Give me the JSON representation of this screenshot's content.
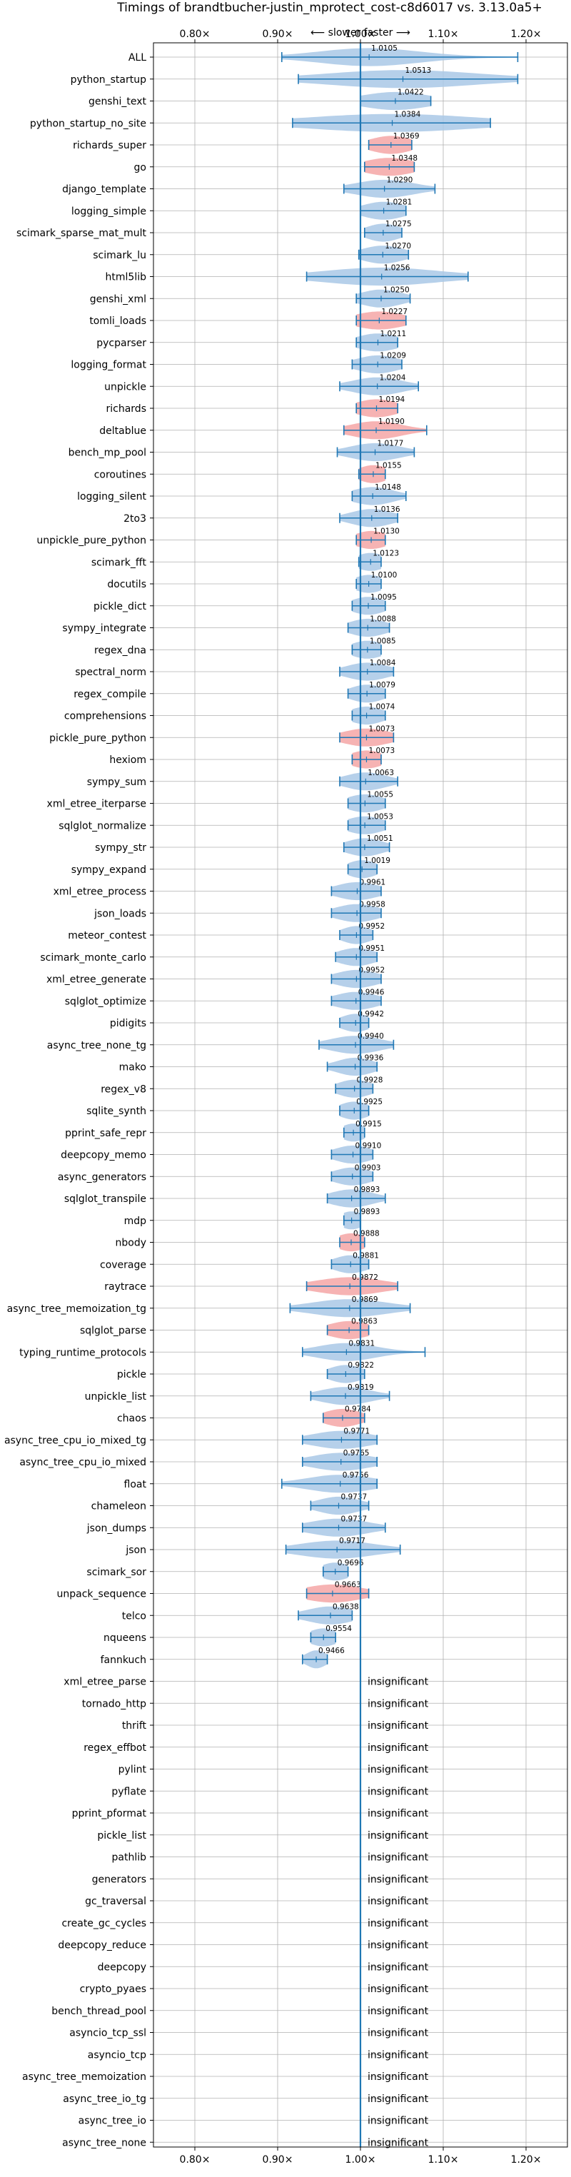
{
  "chart_data": {
    "type": "violin",
    "title": "Timings of brandtbucher-justin_mprotect_cost-c8d6017 vs. 3.13.0a5+",
    "subtitle": "⟵ slower   faster ⟶",
    "xlim": [
      0.75,
      1.25
    ],
    "x_ticks": [
      0.8,
      0.9,
      1.0,
      1.1,
      1.2
    ],
    "x_tick_labels": [
      "0.80×",
      "0.90×",
      "1.00×",
      "1.10×",
      "1.20×"
    ],
    "reference_line": 1.0,
    "grid": true,
    "colors": {
      "faster": "#a9c8e6",
      "slower": "#f4a6a6",
      "line": "#1f77b4"
    },
    "insignificant_label": "insignificant",
    "benchmarks": [
      {
        "name": "ALL",
        "value": 1.0105,
        "label": "1.0105",
        "min": 0.905,
        "max": 1.19,
        "spread": 0.06,
        "color": "faster"
      },
      {
        "name": "python_startup",
        "value": 1.0513,
        "label": "1.0513",
        "min": 0.925,
        "max": 1.19,
        "spread": 0.09,
        "color": "faster"
      },
      {
        "name": "genshi_text",
        "value": 1.0422,
        "label": "1.0422",
        "min": 1.0,
        "max": 1.085,
        "spread": 0.04,
        "color": "faster"
      },
      {
        "name": "python_startup_no_site",
        "value": 1.0384,
        "label": "1.0384",
        "min": 0.918,
        "max": 1.157,
        "spread": 0.1,
        "color": "faster"
      },
      {
        "name": "richards_super",
        "value": 1.0369,
        "label": "1.0369",
        "min": 1.01,
        "max": 1.062,
        "spread": 0.025,
        "color": "slower"
      },
      {
        "name": "go",
        "value": 1.0348,
        "label": "1.0348",
        "min": 1.005,
        "max": 1.065,
        "spread": 0.03,
        "color": "slower"
      },
      {
        "name": "django_template",
        "value": 1.029,
        "label": "1.0290",
        "min": 0.98,
        "max": 1.09,
        "spread": 0.035,
        "color": "faster"
      },
      {
        "name": "logging_simple",
        "value": 1.0281,
        "label": "1.0281",
        "min": 1.0,
        "max": 1.055,
        "spread": 0.025,
        "color": "faster"
      },
      {
        "name": "scimark_sparse_mat_mult",
        "value": 1.0275,
        "label": "1.0275",
        "min": 1.005,
        "max": 1.05,
        "spread": 0.02,
        "color": "faster"
      },
      {
        "name": "scimark_lu",
        "value": 1.027,
        "label": "1.0270",
        "min": 0.998,
        "max": 1.058,
        "spread": 0.025,
        "color": "faster"
      },
      {
        "name": "html5lib",
        "value": 1.0256,
        "label": "1.0256",
        "min": 0.935,
        "max": 1.13,
        "spread": 0.07,
        "color": "faster"
      },
      {
        "name": "genshi_xml",
        "value": 1.025,
        "label": "1.0250",
        "min": 0.995,
        "max": 1.06,
        "spread": 0.025,
        "color": "faster"
      },
      {
        "name": "tomli_loads",
        "value": 1.0227,
        "label": "1.0227",
        "min": 0.995,
        "max": 1.055,
        "spread": 0.03,
        "color": "slower"
      },
      {
        "name": "pycparser",
        "value": 1.0211,
        "label": "1.0211",
        "min": 0.995,
        "max": 1.045,
        "spread": 0.025,
        "color": "faster"
      },
      {
        "name": "logging_format",
        "value": 1.0209,
        "label": "1.0209",
        "min": 0.99,
        "max": 1.05,
        "spread": 0.025,
        "color": "faster"
      },
      {
        "name": "unpickle",
        "value": 1.0204,
        "label": "1.0204",
        "min": 0.975,
        "max": 1.07,
        "spread": 0.03,
        "color": "faster"
      },
      {
        "name": "richards",
        "value": 1.0194,
        "label": "1.0194",
        "min": 0.995,
        "max": 1.045,
        "spread": 0.025,
        "color": "slower"
      },
      {
        "name": "deltablue",
        "value": 1.019,
        "label": "1.0190",
        "min": 0.98,
        "max": 1.08,
        "spread": 0.03,
        "color": "slower"
      },
      {
        "name": "bench_mp_pool",
        "value": 1.0177,
        "label": "1.0177",
        "min": 0.972,
        "max": 1.065,
        "spread": 0.03,
        "color": "faster"
      },
      {
        "name": "coroutines",
        "value": 1.0155,
        "label": "1.0155",
        "min": 0.998,
        "max": 1.03,
        "spread": 0.018,
        "color": "slower"
      },
      {
        "name": "logging_silent",
        "value": 1.0148,
        "label": "1.0148",
        "min": 0.99,
        "max": 1.055,
        "spread": 0.025,
        "color": "faster"
      },
      {
        "name": "2to3",
        "value": 1.0136,
        "label": "1.0136",
        "min": 0.975,
        "max": 1.045,
        "spread": 0.025,
        "color": "faster"
      },
      {
        "name": "unpickle_pure_python",
        "value": 1.013,
        "label": "1.0130",
        "min": 0.995,
        "max": 1.03,
        "spread": 0.02,
        "color": "slower"
      },
      {
        "name": "scimark_fft",
        "value": 1.0123,
        "label": "1.0123",
        "min": 0.998,
        "max": 1.025,
        "spread": 0.018,
        "color": "faster"
      },
      {
        "name": "docutils",
        "value": 1.01,
        "label": "1.0100",
        "min": 0.995,
        "max": 1.025,
        "spread": 0.018,
        "color": "faster"
      },
      {
        "name": "pickle_dict",
        "value": 1.0095,
        "label": "1.0095",
        "min": 0.99,
        "max": 1.03,
        "spread": 0.02,
        "color": "faster"
      },
      {
        "name": "sympy_integrate",
        "value": 1.0088,
        "label": "1.0088",
        "min": 0.985,
        "max": 1.035,
        "spread": 0.022,
        "color": "faster"
      },
      {
        "name": "regex_dna",
        "value": 1.0085,
        "label": "1.0085",
        "min": 0.99,
        "max": 1.025,
        "spread": 0.02,
        "color": "faster"
      },
      {
        "name": "spectral_norm",
        "value": 1.0084,
        "label": "1.0084",
        "min": 0.975,
        "max": 1.04,
        "spread": 0.025,
        "color": "faster"
      },
      {
        "name": "regex_compile",
        "value": 1.0079,
        "label": "1.0079",
        "min": 0.985,
        "max": 1.03,
        "spread": 0.02,
        "color": "faster"
      },
      {
        "name": "comprehensions",
        "value": 1.0074,
        "label": "1.0074",
        "min": 0.99,
        "max": 1.03,
        "spread": 0.02,
        "color": "faster"
      },
      {
        "name": "pickle_pure_python",
        "value": 1.0073,
        "label": "1.0073",
        "min": 0.975,
        "max": 1.04,
        "spread": 0.028,
        "color": "slower"
      },
      {
        "name": "hexiom",
        "value": 1.0073,
        "label": "1.0073",
        "min": 0.99,
        "max": 1.025,
        "spread": 0.02,
        "color": "slower"
      },
      {
        "name": "sympy_sum",
        "value": 1.0063,
        "label": "1.0063",
        "min": 0.975,
        "max": 1.045,
        "spread": 0.025,
        "color": "faster"
      },
      {
        "name": "xml_etree_iterparse",
        "value": 1.0055,
        "label": "1.0055",
        "min": 0.985,
        "max": 1.03,
        "spread": 0.022,
        "color": "faster"
      },
      {
        "name": "sqlglot_normalize",
        "value": 1.0053,
        "label": "1.0053",
        "min": 0.985,
        "max": 1.03,
        "spread": 0.022,
        "color": "faster"
      },
      {
        "name": "sympy_str",
        "value": 1.0051,
        "label": "1.0051",
        "min": 0.98,
        "max": 1.035,
        "spread": 0.022,
        "color": "faster"
      },
      {
        "name": "sympy_expand",
        "value": 1.0019,
        "label": "1.0019",
        "min": 0.985,
        "max": 1.02,
        "spread": 0.018,
        "color": "faster"
      },
      {
        "name": "xml_etree_process",
        "value": 0.9961,
        "label": "0.9961",
        "min": 0.965,
        "max": 1.025,
        "spread": 0.025,
        "color": "faster"
      },
      {
        "name": "json_loads",
        "value": 0.9958,
        "label": "0.9958",
        "min": 0.965,
        "max": 1.025,
        "spread": 0.025,
        "color": "faster"
      },
      {
        "name": "meteor_contest",
        "value": 0.9952,
        "label": "0.9952",
        "min": 0.975,
        "max": 1.015,
        "spread": 0.018,
        "color": "faster"
      },
      {
        "name": "scimark_monte_carlo",
        "value": 0.9951,
        "label": "0.9951",
        "min": 0.97,
        "max": 1.02,
        "spread": 0.022,
        "color": "faster"
      },
      {
        "name": "xml_etree_generate",
        "value": 0.9952,
        "label": "0.9952",
        "min": 0.965,
        "max": 1.025,
        "spread": 0.025,
        "color": "faster"
      },
      {
        "name": "sqlglot_optimize",
        "value": 0.9946,
        "label": "0.9946",
        "min": 0.965,
        "max": 1.025,
        "spread": 0.025,
        "color": "faster"
      },
      {
        "name": "pidigits",
        "value": 0.9942,
        "label": "0.9942",
        "min": 0.975,
        "max": 1.01,
        "spread": 0.018,
        "color": "faster"
      },
      {
        "name": "async_tree_none_tg",
        "value": 0.994,
        "label": "0.9940",
        "min": 0.95,
        "max": 1.04,
        "spread": 0.03,
        "color": "faster"
      },
      {
        "name": "mako",
        "value": 0.9936,
        "label": "0.9936",
        "min": 0.96,
        "max": 1.02,
        "spread": 0.022,
        "color": "faster"
      },
      {
        "name": "regex_v8",
        "value": 0.9928,
        "label": "0.9928",
        "min": 0.97,
        "max": 1.015,
        "spread": 0.02,
        "color": "faster"
      },
      {
        "name": "sqlite_synth",
        "value": 0.9925,
        "label": "0.9925",
        "min": 0.975,
        "max": 1.01,
        "spread": 0.018,
        "color": "faster"
      },
      {
        "name": "pprint_safe_repr",
        "value": 0.9915,
        "label": "0.9915",
        "min": 0.98,
        "max": 1.005,
        "spread": 0.015,
        "color": "faster"
      },
      {
        "name": "deepcopy_memo",
        "value": 0.991,
        "label": "0.9910",
        "min": 0.965,
        "max": 1.015,
        "spread": 0.022,
        "color": "faster"
      },
      {
        "name": "async_generators",
        "value": 0.9903,
        "label": "0.9903",
        "min": 0.965,
        "max": 1.015,
        "spread": 0.022,
        "color": "faster"
      },
      {
        "name": "sqlglot_transpile",
        "value": 0.9893,
        "label": "0.9893",
        "min": 0.96,
        "max": 1.03,
        "spread": 0.025,
        "color": "faster"
      },
      {
        "name": "mdp",
        "value": 0.9893,
        "label": "0.9893",
        "min": 0.98,
        "max": 1.0,
        "spread": 0.015,
        "color": "faster"
      },
      {
        "name": "nbody",
        "value": 0.9888,
        "label": "0.9888",
        "min": 0.975,
        "max": 1.005,
        "spread": 0.018,
        "color": "slower"
      },
      {
        "name": "coverage",
        "value": 0.9881,
        "label": "0.9881",
        "min": 0.965,
        "max": 1.01,
        "spread": 0.02,
        "color": "faster"
      },
      {
        "name": "raytrace",
        "value": 0.9872,
        "label": "0.9872",
        "min": 0.935,
        "max": 1.045,
        "spread": 0.04,
        "color": "slower"
      },
      {
        "name": "async_tree_memoization_tg",
        "value": 0.9869,
        "label": "0.9869",
        "min": 0.915,
        "max": 1.06,
        "spread": 0.045,
        "color": "faster"
      },
      {
        "name": "sqlglot_parse",
        "value": 0.9863,
        "label": "0.9863",
        "min": 0.96,
        "max": 1.01,
        "spread": 0.025,
        "color": "slower"
      },
      {
        "name": "typing_runtime_protocols",
        "value": 0.9831,
        "label": "0.9831",
        "min": 0.93,
        "max": 1.078,
        "spread": 0.035,
        "color": "faster"
      },
      {
        "name": "pickle",
        "value": 0.9822,
        "label": "0.9822",
        "min": 0.96,
        "max": 1.005,
        "spread": 0.02,
        "color": "faster"
      },
      {
        "name": "unpickle_list",
        "value": 0.9819,
        "label": "0.9819",
        "min": 0.94,
        "max": 1.035,
        "spread": 0.03,
        "color": "faster"
      },
      {
        "name": "chaos",
        "value": 0.9784,
        "label": "0.9784",
        "min": 0.955,
        "max": 1.005,
        "spread": 0.022,
        "color": "slower"
      },
      {
        "name": "async_tree_cpu_io_mixed_tg",
        "value": 0.9771,
        "label": "0.9771",
        "min": 0.93,
        "max": 1.02,
        "spread": 0.035,
        "color": "faster"
      },
      {
        "name": "async_tree_cpu_io_mixed",
        "value": 0.9765,
        "label": "0.9765",
        "min": 0.93,
        "max": 1.02,
        "spread": 0.035,
        "color": "faster"
      },
      {
        "name": "float",
        "value": 0.9756,
        "label": "0.9756",
        "min": 0.905,
        "max": 1.02,
        "spread": 0.04,
        "color": "faster"
      },
      {
        "name": "chameleon",
        "value": 0.9737,
        "label": "0.9737",
        "min": 0.94,
        "max": 1.01,
        "spread": 0.025,
        "color": "faster"
      },
      {
        "name": "json_dumps",
        "value": 0.9737,
        "label": "0.9737",
        "min": 0.93,
        "max": 1.03,
        "spread": 0.035,
        "color": "faster"
      },
      {
        "name": "json",
        "value": 0.9717,
        "label": "0.9717",
        "min": 0.91,
        "max": 1.048,
        "spread": 0.045,
        "color": "faster"
      },
      {
        "name": "scimark_sor",
        "value": 0.9696,
        "label": "0.9696",
        "min": 0.955,
        "max": 0.985,
        "spread": 0.018,
        "color": "faster"
      },
      {
        "name": "unpack_sequence",
        "value": 0.9663,
        "label": "0.9663",
        "min": 0.935,
        "max": 1.01,
        "spread": 0.035,
        "color": "slower"
      },
      {
        "name": "telco",
        "value": 0.9638,
        "label": "0.9638",
        "min": 0.925,
        "max": 0.99,
        "spread": 0.028,
        "color": "faster"
      },
      {
        "name": "nqueens",
        "value": 0.9554,
        "label": "0.9554",
        "min": 0.94,
        "max": 0.97,
        "spread": 0.018,
        "color": "faster"
      },
      {
        "name": "fannkuch",
        "value": 0.9466,
        "label": "0.9466",
        "min": 0.93,
        "max": 0.96,
        "spread": 0.012,
        "color": "faster"
      },
      {
        "name": "xml_etree_parse",
        "insignificant": true
      },
      {
        "name": "tornado_http",
        "insignificant": true
      },
      {
        "name": "thrift",
        "insignificant": true
      },
      {
        "name": "regex_effbot",
        "insignificant": true
      },
      {
        "name": "pylint",
        "insignificant": true
      },
      {
        "name": "pyflate",
        "insignificant": true
      },
      {
        "name": "pprint_pformat",
        "insignificant": true
      },
      {
        "name": "pickle_list",
        "insignificant": true
      },
      {
        "name": "pathlib",
        "insignificant": true
      },
      {
        "name": "generators",
        "insignificant": true
      },
      {
        "name": "gc_traversal",
        "insignificant": true
      },
      {
        "name": "create_gc_cycles",
        "insignificant": true
      },
      {
        "name": "deepcopy_reduce",
        "insignificant": true
      },
      {
        "name": "deepcopy",
        "insignificant": true
      },
      {
        "name": "crypto_pyaes",
        "insignificant": true
      },
      {
        "name": "bench_thread_pool",
        "insignificant": true
      },
      {
        "name": "asyncio_tcp_ssl",
        "insignificant": true
      },
      {
        "name": "asyncio_tcp",
        "insignificant": true
      },
      {
        "name": "async_tree_memoization",
        "insignificant": true
      },
      {
        "name": "async_tree_io_tg",
        "insignificant": true
      },
      {
        "name": "async_tree_io",
        "insignificant": true
      },
      {
        "name": "async_tree_none",
        "insignificant": true
      }
    ]
  }
}
